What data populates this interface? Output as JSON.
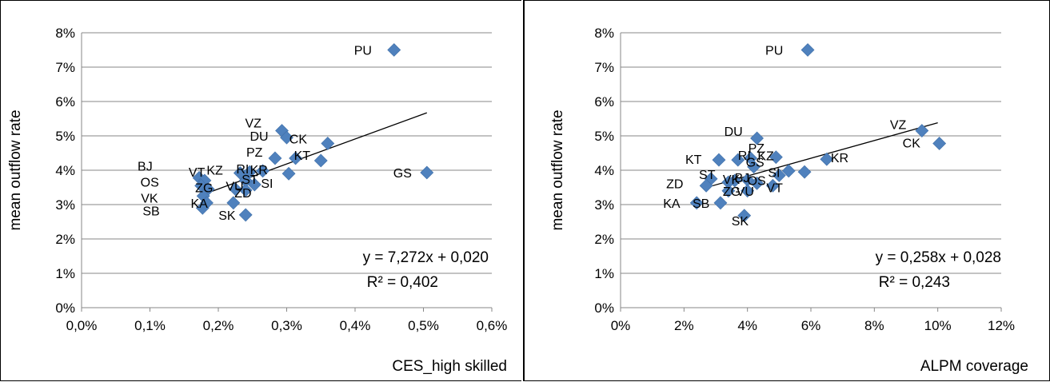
{
  "chart_data": [
    {
      "type": "scatter",
      "xlabel": "CES_high skilled",
      "ylabel": "mean outflow rate",
      "xlim": [
        0,
        0.6
      ],
      "ylim": [
        0,
        8
      ],
      "x_ticks": [
        "0,0%",
        "0,1%",
        "0,2%",
        "0,3%",
        "0,4%",
        "0,5%",
        "0,6%"
      ],
      "y_ticks": [
        "0%",
        "1%",
        "2%",
        "3%",
        "4%",
        "5%",
        "6%",
        "7%",
        "8%"
      ],
      "gridlines": "horizontal",
      "marker_color": "#4F81BD",
      "trendline": {
        "slope": 7.272,
        "intercept": 2.0,
        "x_range": [
          0.17,
          0.505
        ]
      },
      "equation": "y = 7,272x + 0,020",
      "r_squared": "R² = 0,402",
      "points": [
        {
          "label": "PU",
          "x": 0.457,
          "y": 7.5
        },
        {
          "label": "GS",
          "x": 0.505,
          "y": 3.93
        },
        {
          "label": "VZ",
          "x": 0.293,
          "y": 5.15
        },
        {
          "label": "DU",
          "x": 0.3,
          "y": 4.95
        },
        {
          "label": "CK",
          "x": 0.36,
          "y": 4.78
        },
        {
          "label": "PZ",
          "x": 0.283,
          "y": 4.35
        },
        {
          "label": "KT",
          "x": 0.313,
          "y": 4.35
        },
        {
          "label": "",
          "x": 0.35,
          "y": 4.28
        },
        {
          "label": "KZ",
          "x": 0.232,
          "y": 3.92
        },
        {
          "label": "RI",
          "x": 0.246,
          "y": 3.95
        },
        {
          "label": "KR",
          "x": 0.265,
          "y": 3.98
        },
        {
          "label": "",
          "x": 0.303,
          "y": 3.9
        },
        {
          "label": "ST",
          "x": 0.24,
          "y": 3.7
        },
        {
          "label": "SI",
          "x": 0.253,
          "y": 3.58
        },
        {
          "label": "BJ",
          "x": 0.172,
          "y": 3.78
        },
        {
          "label": "VT",
          "x": 0.18,
          "y": 3.7
        },
        {
          "label": "OS",
          "x": 0.175,
          "y": 3.55
        },
        {
          "label": "ZG",
          "x": 0.185,
          "y": 3.45
        },
        {
          "label": "VU",
          "x": 0.225,
          "y": 3.45
        },
        {
          "label": "ZD",
          "x": 0.24,
          "y": 3.42
        },
        {
          "label": "VK",
          "x": 0.178,
          "y": 3.25
        },
        {
          "label": "KA",
          "x": 0.183,
          "y": 3.05
        },
        {
          "label": "",
          "x": 0.222,
          "y": 3.05
        },
        {
          "label": "SB",
          "x": 0.177,
          "y": 2.9
        },
        {
          "label": "SK",
          "x": 0.24,
          "y": 2.7
        }
      ]
    },
    {
      "type": "scatter",
      "xlabel": "ALPM coverage",
      "ylabel": "mean outflow rate",
      "xlim": [
        0,
        12
      ],
      "ylim": [
        0,
        8
      ],
      "x_ticks": [
        "0%",
        "2%",
        "4%",
        "6%",
        "8%",
        "10%",
        "12%"
      ],
      "y_ticks": [
        "0%",
        "1%",
        "2%",
        "3%",
        "4%",
        "5%",
        "6%",
        "7%",
        "8%"
      ],
      "gridlines": "horizontal",
      "marker_color": "#4F81BD",
      "trendline": {
        "slope": 0.258,
        "intercept": 2.8,
        "x_range": [
          2.7,
          10.0
        ]
      },
      "equation": "y = 0,258x + 0,028",
      "r_squared": "R² = 0,243",
      "points": [
        {
          "label": "PU",
          "x": 5.9,
          "y": 7.5
        },
        {
          "label": "VZ",
          "x": 9.5,
          "y": 5.15
        },
        {
          "label": "CK",
          "x": 10.05,
          "y": 4.78
        },
        {
          "label": "DU",
          "x": 4.3,
          "y": 4.93
        },
        {
          "label": "KT",
          "x": 3.1,
          "y": 4.3
        },
        {
          "label": "RI",
          "x": 3.7,
          "y": 4.3
        },
        {
          "label": "PZ",
          "x": 4.1,
          "y": 4.35
        },
        {
          "label": "KZ",
          "x": 4.9,
          "y": 4.38
        },
        {
          "label": "KR",
          "x": 6.5,
          "y": 4.32
        },
        {
          "label": "GS",
          "x": 4.2,
          "y": 4.1
        },
        {
          "label": "",
          "x": 5.8,
          "y": 3.95
        },
        {
          "label": "ST",
          "x": 2.85,
          "y": 3.75
        },
        {
          "label": "SI",
          "x": 5.0,
          "y": 3.85
        },
        {
          "label": "",
          "x": 5.3,
          "y": 3.98
        },
        {
          "label": "BJ",
          "x": 4.0,
          "y": 3.72
        },
        {
          "label": "",
          "x": 3.6,
          "y": 3.7
        },
        {
          "label": "ZD",
          "x": 2.7,
          "y": 3.55
        },
        {
          "label": "VK",
          "x": 3.4,
          "y": 3.65
        },
        {
          "label": "OS",
          "x": 4.3,
          "y": 3.62
        },
        {
          "label": "VT",
          "x": 4.8,
          "y": 3.55
        },
        {
          "label": "ZG",
          "x": 3.4,
          "y": 3.4
        },
        {
          "label": "VU",
          "x": 4.0,
          "y": 3.4
        },
        {
          "label": "KA",
          "x": 2.4,
          "y": 3.05
        },
        {
          "label": "SB",
          "x": 3.15,
          "y": 3.05
        },
        {
          "label": "SK",
          "x": 3.9,
          "y": 2.68
        }
      ]
    }
  ]
}
